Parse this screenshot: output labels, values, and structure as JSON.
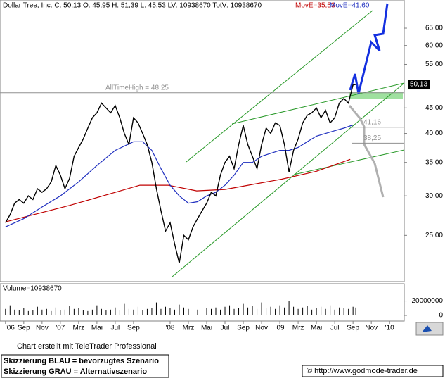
{
  "chart_data": {
    "type": "line",
    "title": "Dollar Tree, Inc. C: 50,13 O: 45,95 H: 51,39 L: 45,53 LV: 10938670 TotV: 10938670",
    "log_scale": true,
    "x": [
      6,
      6.5,
      7,
      7.5,
      8,
      8.5,
      9,
      9.5,
      10,
      10.5,
      11,
      11.5,
      12,
      12.5,
      13,
      13.5,
      14,
      14.5,
      15,
      15.5,
      16,
      16.5,
      17,
      17.5,
      18,
      18.5,
      19,
      19.5,
      20,
      20.5,
      21,
      21.5,
      22,
      22.5,
      23,
      23.5,
      24,
      24.5,
      25,
      25.5,
      26,
      26.5,
      27,
      27.5,
      28,
      28.5,
      29,
      29.5,
      30,
      30.5,
      31,
      31.5,
      32,
      32.5,
      33,
      33.5,
      34,
      34.5,
      35,
      35.5,
      36,
      36.5,
      37,
      37.5,
      38,
      38.5,
      39,
      39.5,
      40,
      40.5,
      41,
      41.5,
      42,
      42.5,
      43,
      43.5,
      44,
      44.3
    ],
    "xlim": [
      5.4,
      49.6
    ],
    "xticks": [
      {
        "value": 6,
        "label": "'06"
      },
      {
        "value": 8,
        "label": "Sep"
      },
      {
        "value": 10,
        "label": "Nov"
      },
      {
        "value": 12,
        "label": "'07"
      },
      {
        "value": 14,
        "label": "Mrz"
      },
      {
        "value": 16,
        "label": "Mai"
      },
      {
        "value": 18,
        "label": "Jul"
      },
      {
        "value": 20,
        "label": "Sep"
      },
      {
        "value": 24,
        "label": "'08"
      },
      {
        "value": 26,
        "label": "Mrz"
      },
      {
        "value": 28,
        "label": "Mai"
      },
      {
        "value": 30,
        "label": "Jul"
      },
      {
        "value": 32,
        "label": "Sep"
      },
      {
        "value": 34,
        "label": "Nov"
      },
      {
        "value": 36,
        "label": "'09"
      },
      {
        "value": 38,
        "label": "Mrz"
      },
      {
        "value": 40,
        "label": "Mai"
      },
      {
        "value": 42,
        "label": "Jul"
      },
      {
        "value": 44,
        "label": "Sep"
      },
      {
        "value": 46,
        "label": "Nov"
      },
      {
        "value": 48,
        "label": "'10"
      }
    ],
    "ylim": [
      20.2,
      70.5
    ],
    "yticks": [
      {
        "value": 25,
        "label": "25,00"
      },
      {
        "value": 30,
        "label": "30,00"
      },
      {
        "value": 35,
        "label": "35,00"
      },
      {
        "value": 40,
        "label": "40,00"
      },
      {
        "value": 45,
        "label": "45,00"
      },
      {
        "value": 55,
        "label": "55,00"
      },
      {
        "value": 60,
        "label": "60,00"
      },
      {
        "value": 65,
        "label": "65,00"
      }
    ],
    "series": [
      {
        "name": "Dollar Tree",
        "color": "#000000",
        "values": [
          26.5,
          27.5,
          29,
          29.5,
          29,
          30,
          29.5,
          31,
          30.5,
          31,
          32,
          34.5,
          33,
          31,
          32.5,
          36,
          37.5,
          39,
          41,
          43,
          44,
          46,
          45,
          44,
          45.5,
          43,
          40,
          38,
          43,
          42,
          40,
          38,
          35,
          31,
          28,
          25.5,
          26.5,
          24,
          22,
          25,
          24.5,
          26,
          27,
          28,
          29,
          30.5,
          30,
          33,
          35,
          36,
          34,
          38,
          41.5,
          38,
          36,
          34,
          38,
          41,
          40,
          42,
          41.5,
          38,
          33.5,
          37,
          39,
          42,
          43.5,
          44,
          45,
          43,
          44.5,
          42,
          43,
          46,
          47,
          46,
          50,
          50.13
        ]
      }
    ],
    "moving_averages": [
      {
        "name": "MovE=35,53",
        "color": "#c00000",
        "x": [
          6,
          13,
          20.7,
          23.8,
          26.9,
          30,
          36.2,
          40,
          43.7
        ],
        "values": [
          26.6,
          28.7,
          31.5,
          31.5,
          30.7,
          30.9,
          32.4,
          33.6,
          35.5
        ]
      },
      {
        "name": "MovE=41,60",
        "color": "#1f2fbf",
        "x": [
          6,
          8,
          10,
          12,
          14,
          16,
          18,
          20,
          21,
          22,
          23,
          24,
          25,
          26,
          27,
          28,
          29,
          30,
          31,
          32,
          33,
          34,
          35,
          36,
          37,
          38,
          39,
          40,
          41,
          42,
          43,
          44
        ],
        "values": [
          26,
          27,
          28.5,
          30,
          32,
          34.5,
          37,
          38.5,
          38.5,
          37,
          34,
          31.5,
          30,
          29,
          29.2,
          30,
          30.5,
          31.5,
          33,
          35,
          35,
          36,
          36.5,
          37,
          37,
          37.5,
          38.5,
          39.5,
          40,
          40.5,
          41,
          41.6
        ]
      }
    ],
    "last_price": {
      "value": 50.13,
      "label": "50,13"
    },
    "levels": [
      {
        "value": 48.25,
        "label": "AllTimeHigh  =  48,25"
      },
      {
        "value": 41.16,
        "label": "41,16"
      },
      {
        "value": 38.25,
        "label": "38,25"
      }
    ],
    "volume": {
      "label": "Volume=10938670",
      "ylim": [
        0,
        44000000
      ],
      "yticks": [
        {
          "value": 0,
          "label": "0"
        },
        {
          "value": 20000000,
          "label": "20000000"
        }
      ],
      "values": [
        9000000,
        14000000,
        8000000,
        7000000,
        10000000,
        6000000,
        7000000,
        12000000,
        8000000,
        9000000,
        6000000,
        11000000,
        7000000,
        8000000,
        13000000,
        9000000,
        10000000,
        7000000,
        6000000,
        8000000,
        14000000,
        9000000,
        7000000,
        8000000,
        11000000,
        7000000,
        16000000,
        9000000,
        8000000,
        12000000,
        7000000,
        9000000,
        10000000,
        18000000,
        9000000,
        12000000,
        10000000,
        8000000,
        15000000,
        11000000,
        9000000,
        12000000,
        8000000,
        13000000,
        10000000,
        9000000,
        11000000,
        8000000,
        12000000,
        14000000,
        9000000,
        10000000,
        16000000,
        11000000,
        13000000,
        9000000,
        18000000,
        10000000,
        12000000,
        9000000,
        14000000,
        11000000,
        20000000,
        12000000,
        9000000,
        11000000,
        13000000,
        8000000,
        10000000,
        12000000,
        9000000,
        14000000,
        8000000,
        11000000,
        10000000,
        9000000,
        12000000,
        10938670
      ]
    },
    "notes": [
      "Chart erstellt mit TeleTrader Professional",
      "Skizzierung BLAU = bevorzugtes Szenario",
      "Skizzierung GRAU = Alternativszenario"
    ],
    "source": "© http://www.godmode-trader.de"
  }
}
